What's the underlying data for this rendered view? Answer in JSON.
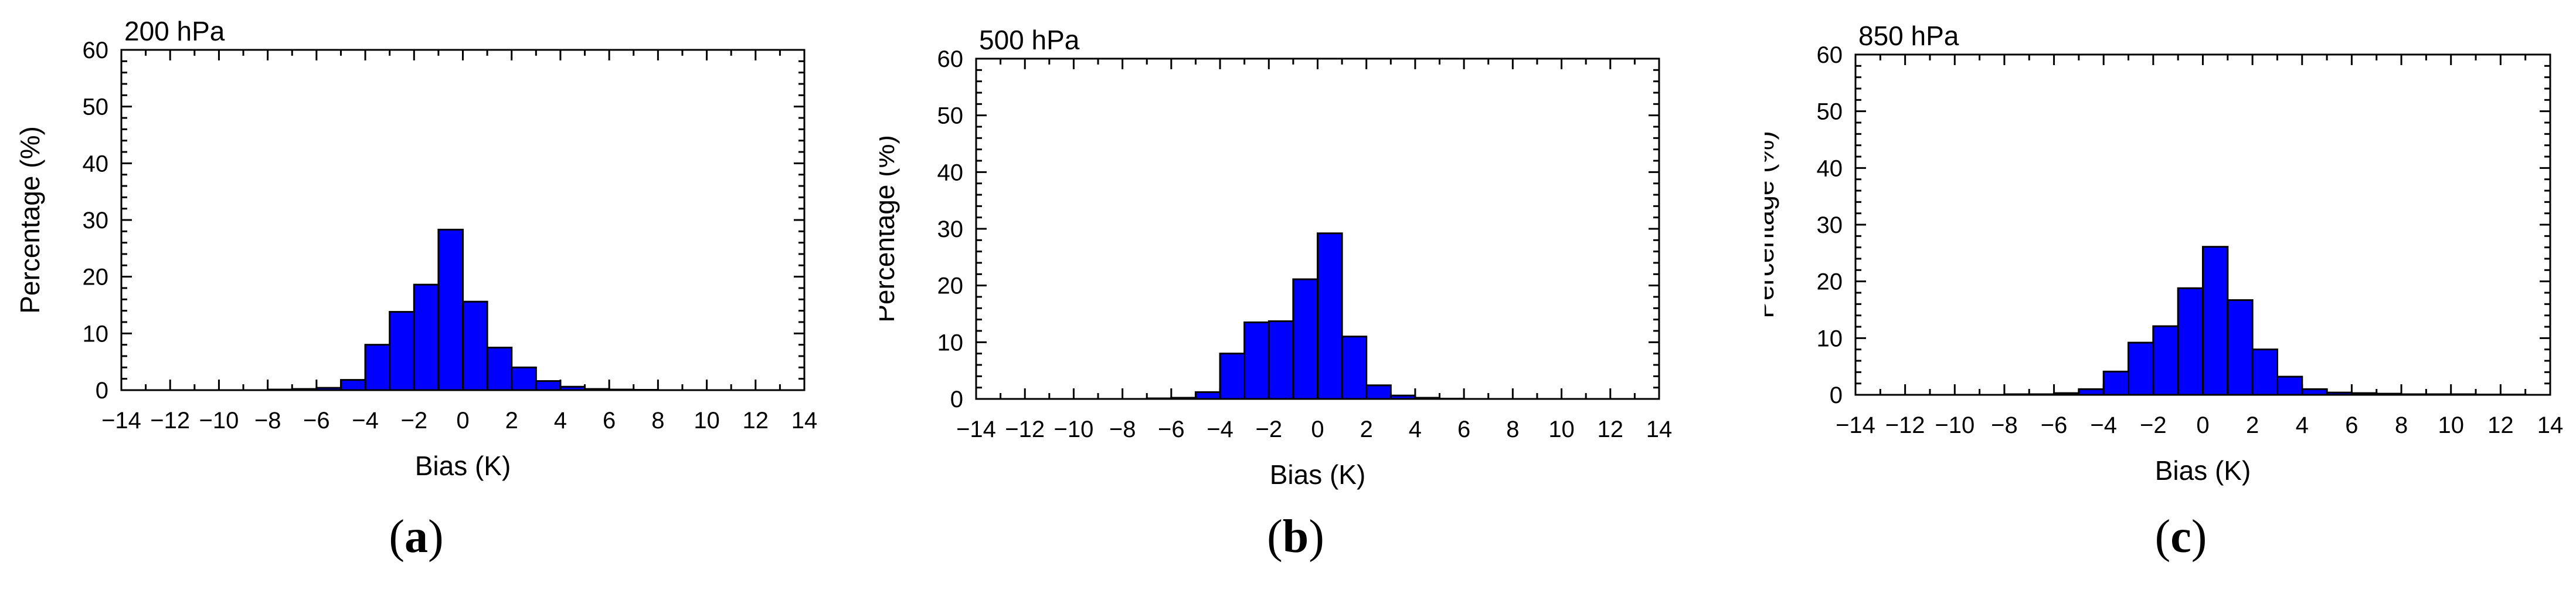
{
  "chart_data": [
    {
      "type": "bar",
      "panel_label": "a",
      "title": "200 hPa",
      "xlabel": "Bias (K)",
      "ylabel": "Percentage (%)",
      "xlim": [
        -14,
        14
      ],
      "ylim": [
        0,
        60
      ],
      "xticks": [
        "−14",
        "−12",
        "−10",
        "−8",
        "−6",
        "−4",
        "−2",
        "0",
        "2",
        "4",
        "6",
        "8",
        "10",
        "12",
        "14"
      ],
      "yticks": [
        "0",
        "10",
        "20",
        "30",
        "40",
        "50",
        "60"
      ],
      "bin_width": 1,
      "bins_start": [
        -8,
        -7,
        -6,
        -5,
        -4,
        -3,
        -2,
        -1,
        0,
        1,
        2,
        3,
        4,
        5,
        6,
        7
      ],
      "values": [
        0.1,
        0.2,
        0.4,
        1.8,
        8.0,
        13.8,
        18.6,
        28.3,
        15.6,
        7.5,
        4.0,
        1.6,
        0.6,
        0.2,
        0.1,
        0.05
      ],
      "bar_color": "#0000ff",
      "grid": false,
      "legend": "none"
    },
    {
      "type": "bar",
      "panel_label": "b",
      "title": "500 hPa",
      "xlabel": "Bias (K)",
      "ylabel": "Percentage (%)",
      "xlim": [
        -14,
        14
      ],
      "ylim": [
        0,
        60
      ],
      "xticks": [
        "−14",
        "−12",
        "−10",
        "−8",
        "−6",
        "−4",
        "−2",
        "0",
        "2",
        "4",
        "6",
        "8",
        "10",
        "12",
        "14"
      ],
      "yticks": [
        "0",
        "10",
        "20",
        "30",
        "40",
        "50",
        "60"
      ],
      "bin_width": 1,
      "bins_start": [
        -7,
        -6,
        -5,
        -4,
        -3,
        -2,
        -1,
        0,
        1,
        2,
        3,
        4,
        5
      ],
      "values": [
        0.1,
        0.2,
        1.2,
        8.0,
        13.5,
        13.7,
        21.1,
        29.2,
        11.0,
        2.4,
        0.6,
        0.2,
        0.05
      ],
      "bar_color": "#0000ff",
      "grid": false,
      "legend": "none"
    },
    {
      "type": "bar",
      "panel_label": "c",
      "title": "850 hPa",
      "xlabel": "Bias (K)",
      "ylabel": "Percentage (%)",
      "xlim": [
        -14,
        14
      ],
      "ylim": [
        0,
        60
      ],
      "xticks": [
        "−14",
        "−12",
        "−10",
        "−8",
        "−6",
        "−4",
        "−2",
        "0",
        "2",
        "4",
        "6",
        "8",
        "10",
        "12",
        "14"
      ],
      "yticks": [
        "0",
        "10",
        "20",
        "30",
        "40",
        "50",
        "60"
      ],
      "bin_width": 1,
      "bins_start": [
        -8,
        -7,
        -6,
        -5,
        -4,
        -3,
        -2,
        -1,
        0,
        1,
        2,
        3,
        4,
        5,
        6,
        7,
        8,
        9,
        10,
        11,
        12
      ],
      "values": [
        0.1,
        0.1,
        0.3,
        1.0,
        4.1,
        9.2,
        12.1,
        18.8,
        26.1,
        16.7,
        8.0,
        3.2,
        1.0,
        0.4,
        0.3,
        0.2,
        0.1,
        0.1,
        0.1,
        0.05,
        0.05
      ],
      "bar_color": "#0000ff",
      "grid": false,
      "legend": "none"
    }
  ]
}
